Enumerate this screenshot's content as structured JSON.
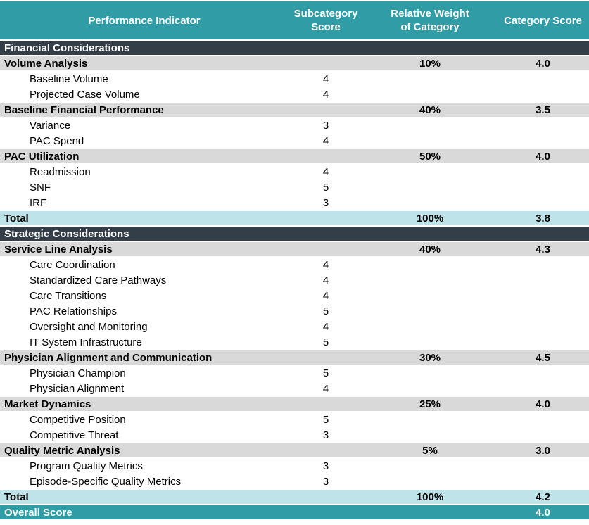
{
  "table": {
    "columns": [
      "Performance Indicator",
      "Subcategory Score",
      "Relative Weight of Category",
      "Category Score"
    ],
    "rows": [
      {
        "type": "section",
        "label": "Financial Considerations"
      },
      {
        "type": "category",
        "label": "Volume Analysis",
        "weight": "10%",
        "score": "4.0"
      },
      {
        "type": "sub",
        "label": "Baseline Volume",
        "sub_score": "4"
      },
      {
        "type": "sub",
        "label": "Projected Case Volume",
        "sub_score": "4"
      },
      {
        "type": "category",
        "label": "Baseline Financial Performance",
        "weight": "40%",
        "score": "3.5"
      },
      {
        "type": "sub",
        "label": "Variance",
        "sub_score": "3"
      },
      {
        "type": "sub",
        "label": "PAC Spend",
        "sub_score": "4"
      },
      {
        "type": "category",
        "label": "PAC Utilization",
        "weight": "50%",
        "score": "4.0"
      },
      {
        "type": "sub",
        "label": "Readmission",
        "sub_score": "4"
      },
      {
        "type": "sub",
        "label": "SNF",
        "sub_score": "5"
      },
      {
        "type": "sub",
        "label": "IRF",
        "sub_score": "3"
      },
      {
        "type": "total",
        "label": "Total",
        "weight": "100%",
        "score": "3.8"
      },
      {
        "type": "section",
        "label": "Strategic Considerations"
      },
      {
        "type": "category",
        "label": "Service Line Analysis",
        "weight": "40%",
        "score": "4.3"
      },
      {
        "type": "sub",
        "label": "Care Coordination",
        "sub_score": "4"
      },
      {
        "type": "sub",
        "label": "Standardized Care Pathways",
        "sub_score": "4"
      },
      {
        "type": "sub",
        "label": "Care Transitions",
        "sub_score": "4"
      },
      {
        "type": "sub",
        "label": "PAC Relationships",
        "sub_score": "5"
      },
      {
        "type": "sub",
        "label": "Oversight and Monitoring",
        "sub_score": "4"
      },
      {
        "type": "sub",
        "label": "IT System Infrastructure",
        "sub_score": "5"
      },
      {
        "type": "category",
        "label": "Physician Alignment and Communication",
        "weight": "30%",
        "score": "4.5"
      },
      {
        "type": "sub",
        "label": "Physician Champion",
        "sub_score": "5"
      },
      {
        "type": "sub",
        "label": "Physician Alignment",
        "sub_score": "4"
      },
      {
        "type": "category",
        "label": "Market Dynamics",
        "weight": "25%",
        "score": "4.0"
      },
      {
        "type": "sub",
        "label": "Competitive Position",
        "sub_score": "5"
      },
      {
        "type": "sub",
        "label": "Competitive Threat",
        "sub_score": "3"
      },
      {
        "type": "category",
        "label": "Quality Metric Analysis",
        "weight": "5%",
        "score": "3.0"
      },
      {
        "type": "sub",
        "label": "Program Quality Metrics",
        "sub_score": "3"
      },
      {
        "type": "sub",
        "label": "Episode-Specific Quality Metrics",
        "sub_score": "3"
      },
      {
        "type": "total",
        "label": "Total",
        "weight": "100%",
        "score": "4.2"
      },
      {
        "type": "overall",
        "label": "Overall Score",
        "score": "4.0"
      }
    ]
  },
  "colors": {
    "header_teal": "#2f9ca6",
    "section_dark": "#333e48",
    "category_gray": "#d9d9d9",
    "total_light_teal": "#bee3e8",
    "overall_teal": "#2f9ca6",
    "row_white": "#ffffff"
  }
}
